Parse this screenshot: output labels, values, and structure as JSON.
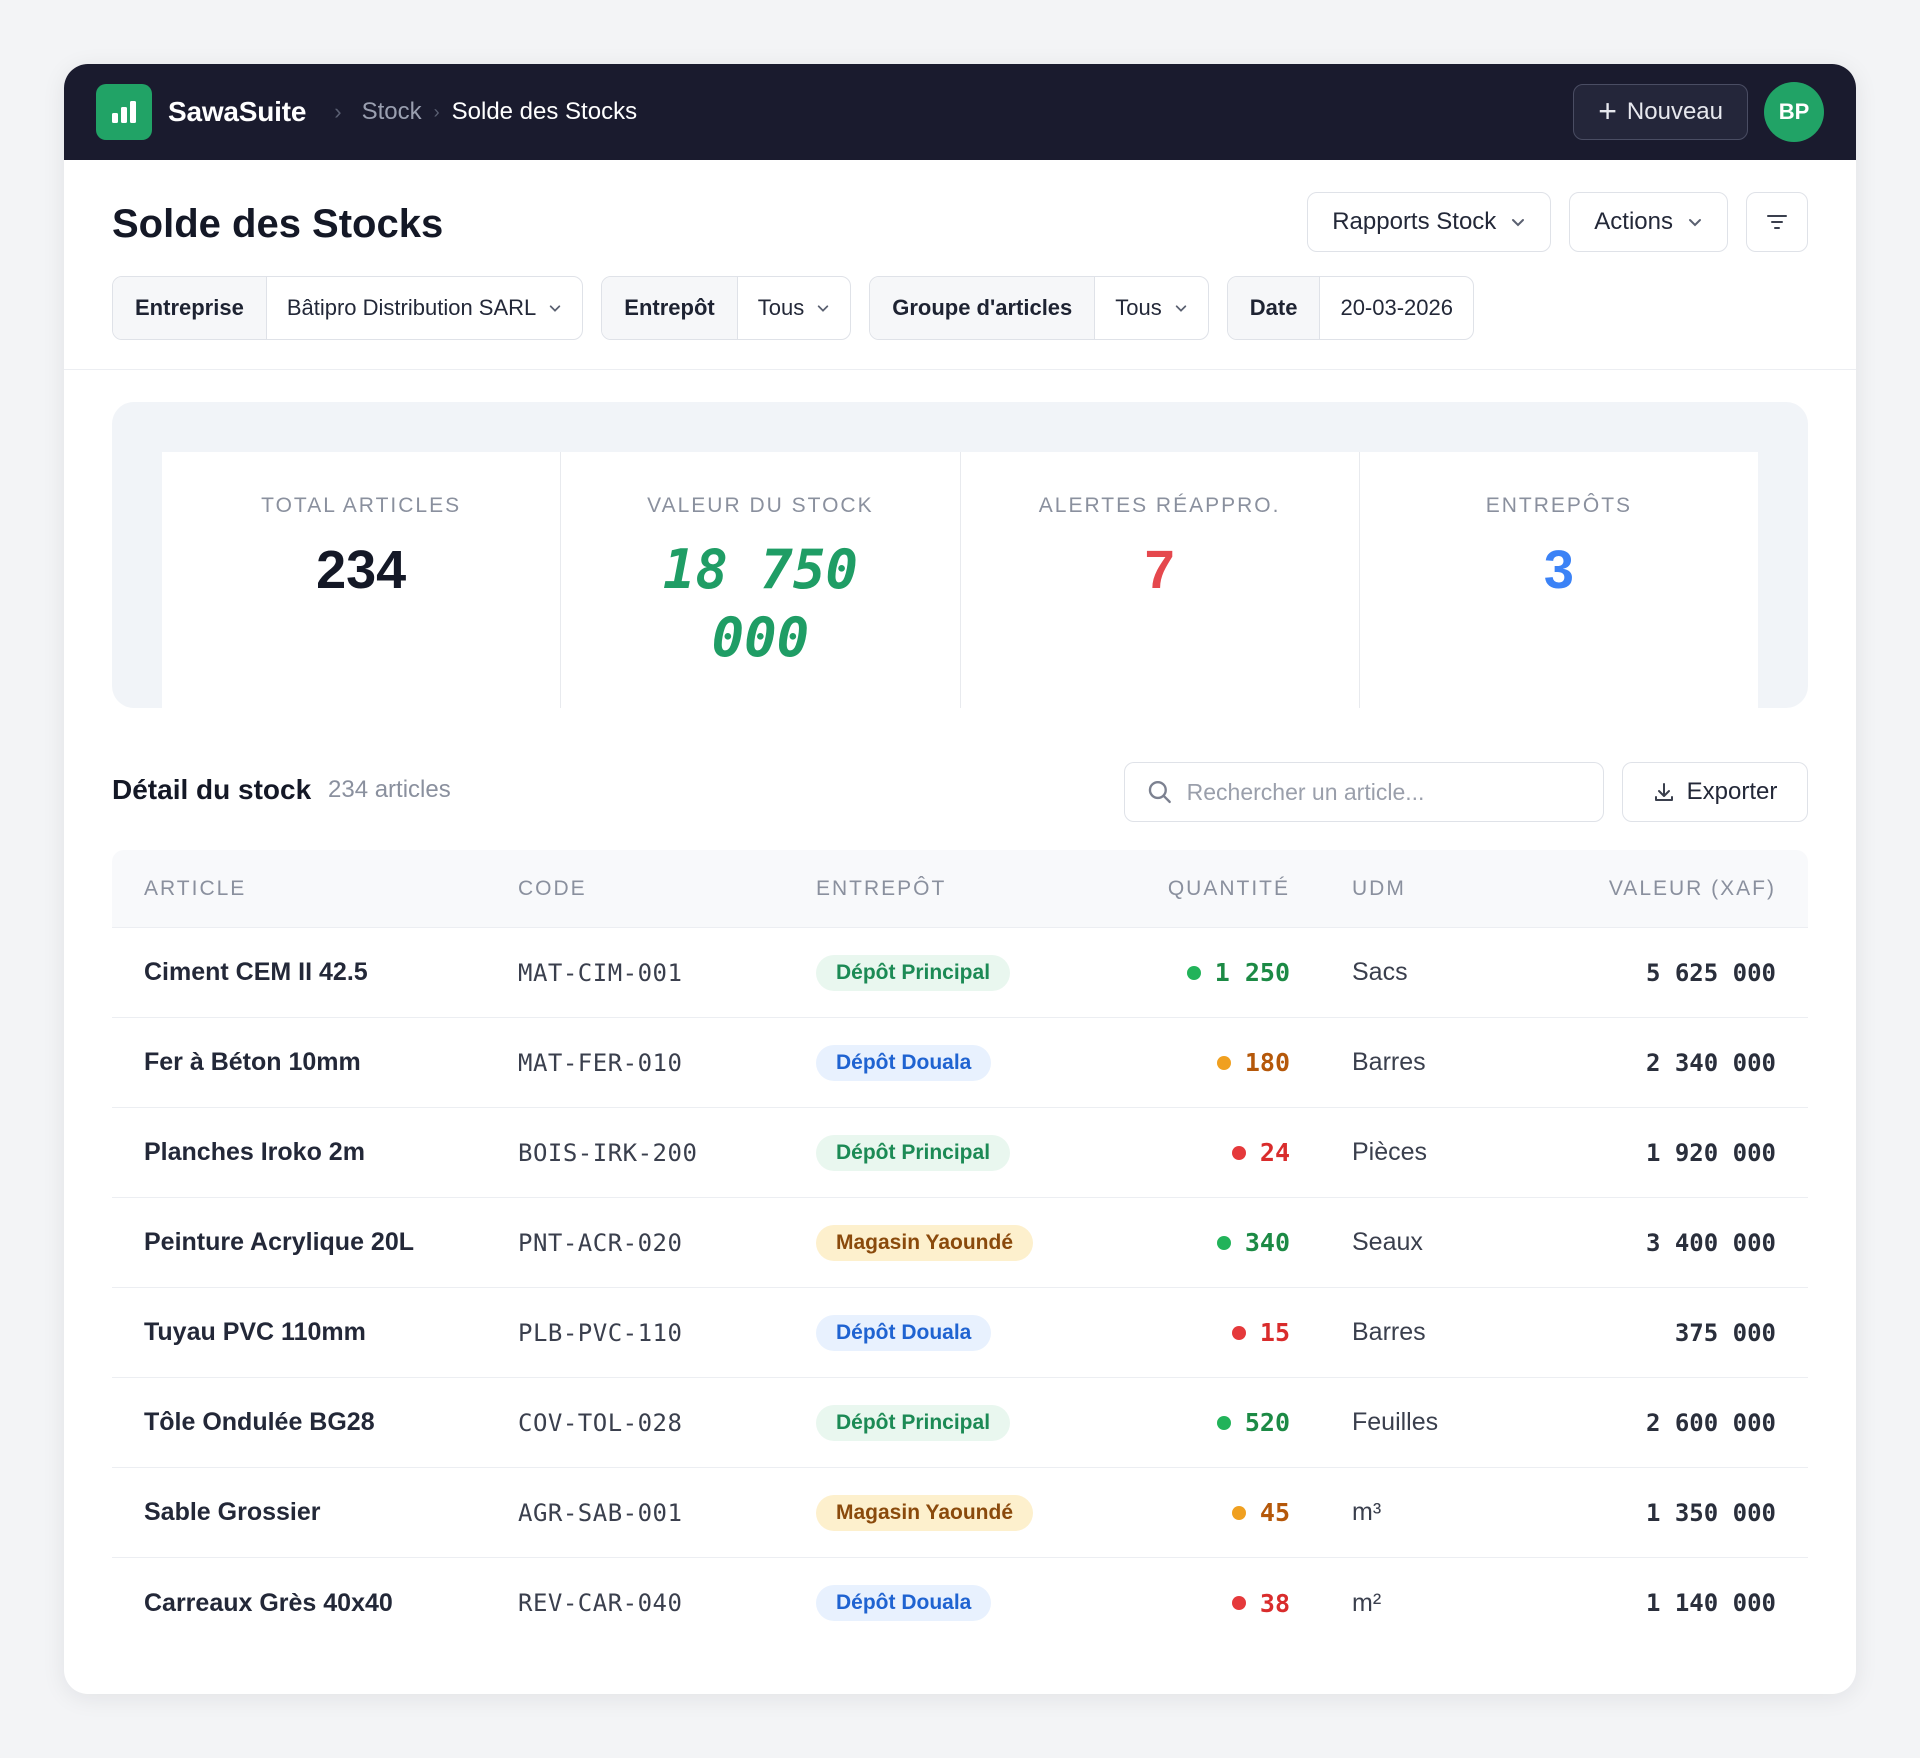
{
  "app": {
    "brand": "SawaSuite",
    "breadcrumb_parent": "Stock",
    "breadcrumb_current": "Solde des Stocks",
    "new_button": "Nouveau",
    "avatar_initials": "BP",
    "accent_color": "#21a366"
  },
  "header": {
    "title": "Solde des Stocks",
    "reports_button": "Rapports Stock",
    "actions_button": "Actions"
  },
  "filters": [
    {
      "label": "Entreprise",
      "value": "Bâtipro Distribution SARL",
      "dropdown": true
    },
    {
      "label": "Entrepôt",
      "value": "Tous",
      "dropdown": true
    },
    {
      "label": "Groupe d'articles",
      "value": "Tous",
      "dropdown": true
    },
    {
      "label": "Date",
      "value": "20-03-2026",
      "dropdown": false
    }
  ],
  "stats": [
    {
      "label": "TOTAL ARTICLES",
      "value": "234",
      "color": "dark"
    },
    {
      "label": "VALEUR DU STOCK",
      "value": "18 750 000",
      "color": "green"
    },
    {
      "label": "ALERTES RÉAPPRO.",
      "value": "7",
      "color": "red"
    },
    {
      "label": "ENTREPÔTS",
      "value": "3",
      "color": "blue"
    }
  ],
  "detail": {
    "title": "Détail du stock",
    "count": "234 articles",
    "search_placeholder": "Rechercher un article...",
    "export_button": "Exporter"
  },
  "table": {
    "columns": [
      "ARTICLE",
      "CODE",
      "ENTREPÔT",
      "QUANTITÉ",
      "UDM",
      "VALEUR (XAF)"
    ],
    "rows": [
      {
        "article": "Ciment CEM II 42.5",
        "code": "MAT-CIM-001",
        "warehouse": "Dépôt Principal",
        "wh_style": "green",
        "qty": "1 250",
        "status": "green",
        "udm": "Sacs",
        "value": "5 625 000"
      },
      {
        "article": "Fer à Béton 10mm",
        "code": "MAT-FER-010",
        "warehouse": "Dépôt Douala",
        "wh_style": "blue",
        "qty": "180",
        "status": "amber",
        "udm": "Barres",
        "value": "2 340 000"
      },
      {
        "article": "Planches Iroko 2m",
        "code": "BOIS-IRK-200",
        "warehouse": "Dépôt Principal",
        "wh_style": "green",
        "qty": "24",
        "status": "red",
        "udm": "Pièces",
        "value": "1 920 000"
      },
      {
        "article": "Peinture Acrylique 20L",
        "code": "PNT-ACR-020",
        "warehouse": "Magasin Yaoundé",
        "wh_style": "amber",
        "qty": "340",
        "status": "green",
        "udm": "Seaux",
        "value": "3 400 000"
      },
      {
        "article": "Tuyau PVC 110mm",
        "code": "PLB-PVC-110",
        "warehouse": "Dépôt Douala",
        "wh_style": "blue",
        "qty": "15",
        "status": "red",
        "udm": "Barres",
        "value": "375 000"
      },
      {
        "article": "Tôle Ondulée BG28",
        "code": "COV-TOL-028",
        "warehouse": "Dépôt Principal",
        "wh_style": "green",
        "qty": "520",
        "status": "green",
        "udm": "Feuilles",
        "value": "2 600 000"
      },
      {
        "article": "Sable Grossier",
        "code": "AGR-SAB-001",
        "warehouse": "Magasin Yaoundé",
        "wh_style": "amber",
        "qty": "45",
        "status": "amber",
        "udm": "m³",
        "value": "1 350 000"
      },
      {
        "article": "Carreaux Grès 40x40",
        "code": "REV-CAR-040",
        "warehouse": "Dépôt Douala",
        "wh_style": "blue",
        "qty": "38",
        "status": "red",
        "udm": "m²",
        "value": "1 140 000"
      }
    ]
  },
  "status_colors": {
    "green": "#22b35a",
    "amber": "#f0a020",
    "red": "#e5393b"
  },
  "qty_colors": {
    "green": "#1c8a45",
    "amber": "#b5580a",
    "red": "#d92c2c"
  }
}
